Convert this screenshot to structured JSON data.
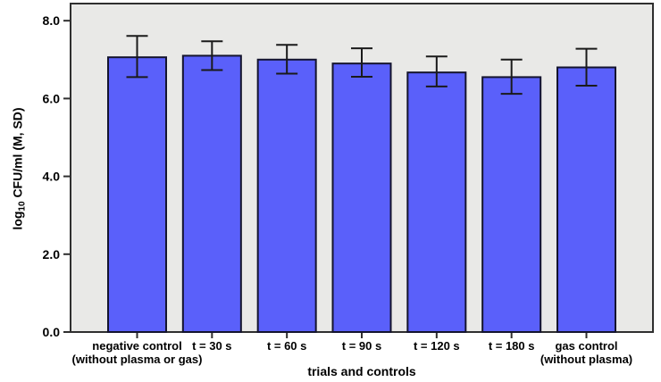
{
  "figure": {
    "background": "#ffffff",
    "plot_background": "#e9e9e7",
    "frame_color": "#2f2f2f"
  },
  "chart_data": {
    "type": "bar",
    "title": "",
    "xlabel": "trials and controls",
    "ylabel": {
      "prefix": "log",
      "sub": "10",
      "suffix": " CFU/ml (M, SD)"
    },
    "categories": [
      {
        "label": "negative control",
        "sublabel": "(without plasma or gas)"
      },
      {
        "label": "t = 30 s",
        "sublabel": ""
      },
      {
        "label": "t = 60 s",
        "sublabel": ""
      },
      {
        "label": "t = 90 s",
        "sublabel": ""
      },
      {
        "label": "t = 120 s",
        "sublabel": ""
      },
      {
        "label": "t = 180 s",
        "sublabel": ""
      },
      {
        "label": "gas control",
        "sublabel": "(without plasma)"
      }
    ],
    "values": [
      7.06,
      7.1,
      7.0,
      6.9,
      6.67,
      6.55,
      6.8
    ],
    "error_upper": [
      7.61,
      7.47,
      7.38,
      7.29,
      7.08,
      7.0,
      7.28
    ],
    "error_lower": [
      6.55,
      6.73,
      6.64,
      6.56,
      6.31,
      6.12,
      6.33
    ],
    "y_ticks": [
      "0.0",
      "2.0",
      "4.0",
      "6.0",
      "8.0"
    ],
    "y_tick_values": [
      0,
      2,
      4,
      6,
      8
    ],
    "ylim": [
      0,
      8.44
    ],
    "grid": false,
    "legend": null,
    "bar_fill": "#5a60fa",
    "bar_stroke": "#14142e",
    "error_color": "#1a1a1a",
    "tick_color": "#2f2f2f"
  }
}
